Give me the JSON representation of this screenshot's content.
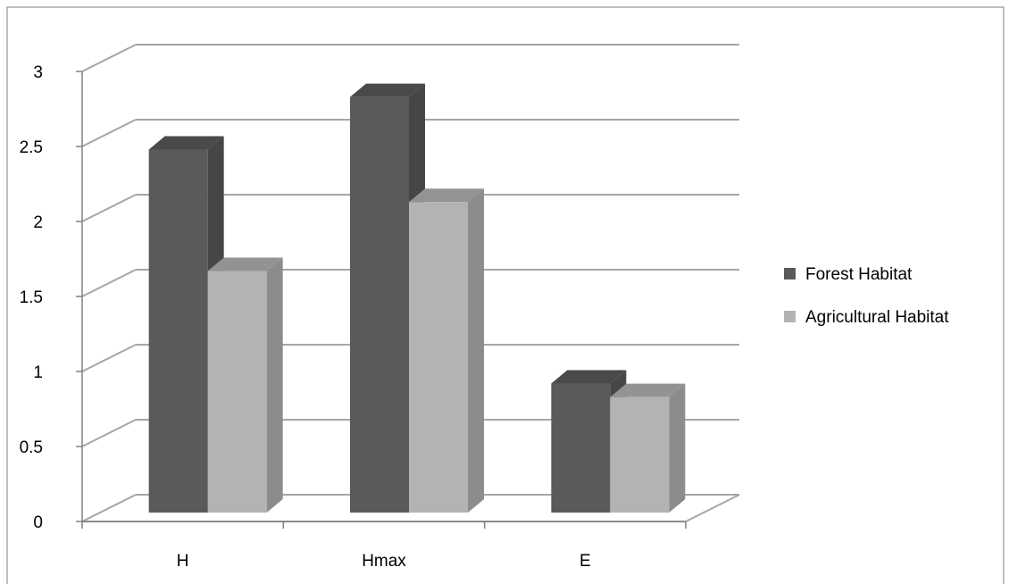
{
  "chart_data": {
    "type": "bar",
    "variant": "3d-clustered",
    "title": "",
    "xlabel": "",
    "ylabel": "",
    "categories": [
      "H",
      "Hmax",
      "E"
    ],
    "series": [
      {
        "name": "Forest Habitat",
        "values": [
          2.42,
          2.77,
          0.86
        ]
      },
      {
        "name": "Agricultural Habitat",
        "values": [
          1.61,
          2.07,
          0.77
        ]
      }
    ],
    "ylim": [
      0,
      3
    ],
    "yticks": [
      "0",
      "0.5",
      "1",
      "1.5",
      "2",
      "2.5",
      "3"
    ],
    "grid": true,
    "legend": "right",
    "colors": {
      "Forest Habitat": "#5a5a5a",
      "Agricultural Habitat": "#b3b3b3",
      "gridline": "#a6a6a6",
      "border": "#808080"
    }
  }
}
